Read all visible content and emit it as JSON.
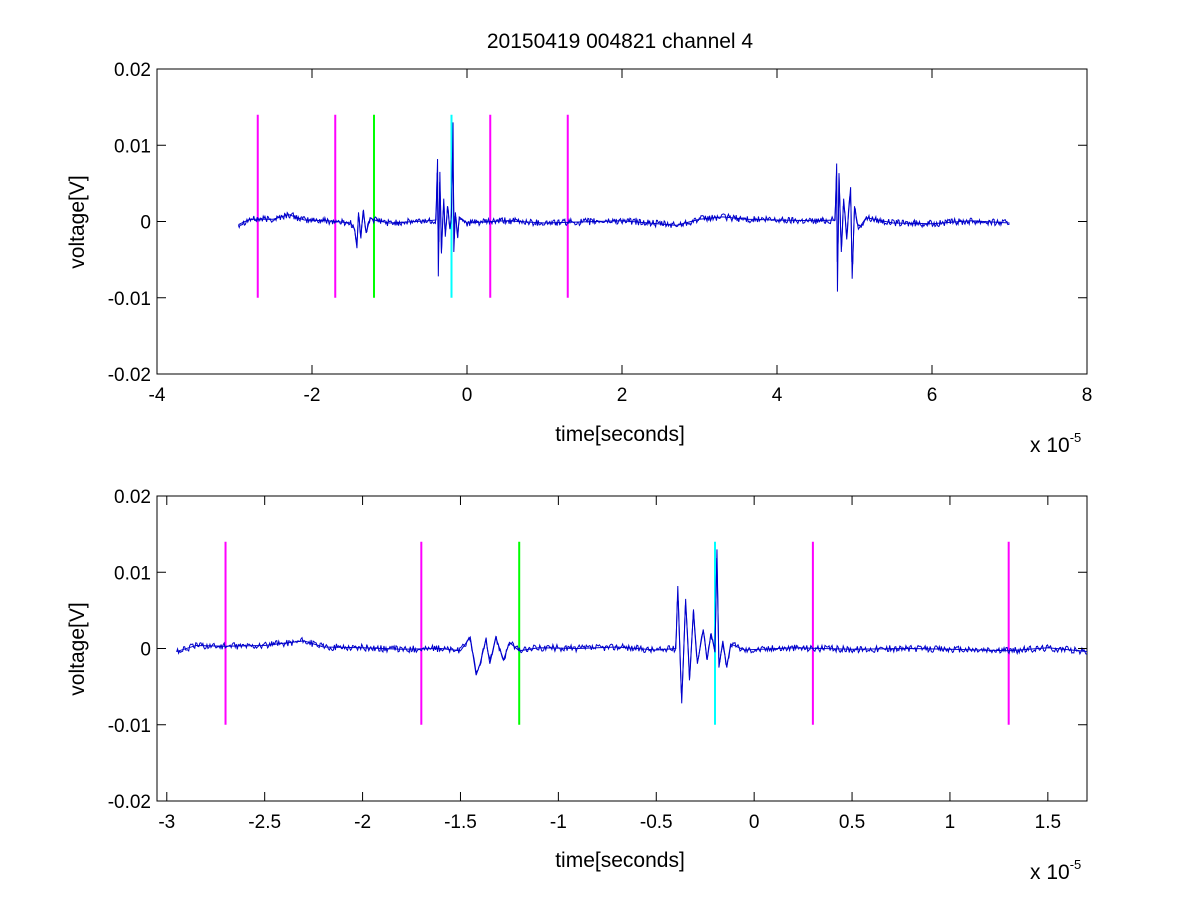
{
  "chart_data": [
    {
      "type": "line",
      "title": "20150419 004821 channel 4",
      "xlabel": "time[seconds]",
      "ylabel": "voltage[V]",
      "x_multiplier_label": "x 10",
      "x_multiplier_exp": "-5",
      "xlim": [
        -4,
        8
      ],
      "ylim": [
        -0.02,
        0.02
      ],
      "x_ticks": [
        -4,
        -2,
        0,
        2,
        4,
        6,
        8
      ],
      "x_tick_labels": [
        "-4",
        "-2",
        "0",
        "2",
        "4",
        "6",
        "8"
      ],
      "y_ticks": [
        -0.02,
        -0.01,
        0,
        0.01,
        0.02
      ],
      "y_tick_labels": [
        "-0.02",
        "-0.01",
        "0",
        "0.01",
        "0.02"
      ],
      "grid": false,
      "signal": {
        "color": "#0000cc",
        "x_range": [
          -2.95,
          7.0
        ],
        "points": [
          [
            -2.95,
            -0.0004
          ],
          [
            -2.8,
            0.0003
          ],
          [
            -2.5,
            0.0003
          ],
          [
            -2.3,
            0.0009
          ],
          [
            -2.1,
            0.0002
          ],
          [
            -1.8,
            0.0001
          ],
          [
            -1.5,
            -0.0002
          ],
          [
            -1.45,
            -0.001
          ],
          [
            -1.42,
            -0.0035
          ],
          [
            -1.4,
            0.0012
          ],
          [
            -1.37,
            -0.002
          ],
          [
            -1.34,
            0.0014
          ],
          [
            -1.3,
            -0.0015
          ],
          [
            -1.25,
            0.0005
          ],
          [
            -1.2,
            0.0002
          ],
          [
            -1.0,
            -0.0002
          ],
          [
            -0.5,
            0.0001
          ],
          [
            -0.4,
            0.0002
          ],
          [
            -0.38,
            0.0082
          ],
          [
            -0.37,
            -0.0072
          ],
          [
            -0.35,
            0.0065
          ],
          [
            -0.33,
            -0.004
          ],
          [
            -0.3,
            0.003
          ],
          [
            -0.28,
            -0.002
          ],
          [
            -0.25,
            0.002
          ],
          [
            -0.22,
            -0.001
          ],
          [
            -0.2,
            0.0008
          ],
          [
            -0.18,
            0.013
          ],
          [
            -0.17,
            -0.004
          ],
          [
            -0.15,
            0.0012
          ],
          [
            -0.12,
            -0.002
          ],
          [
            -0.1,
            0.0006
          ],
          [
            0.0,
            -0.0002
          ],
          [
            0.5,
            0.0001
          ],
          [
            1.0,
            -0.0002
          ],
          [
            2.0,
            0.0001
          ],
          [
            2.7,
            -0.0005
          ],
          [
            3.0,
            0.0003
          ],
          [
            3.3,
            0.0006
          ],
          [
            3.6,
            0.0003
          ],
          [
            4.0,
            0.0002
          ],
          [
            4.5,
            0.0001
          ],
          [
            4.75,
            0.0002
          ],
          [
            4.77,
            0.0076
          ],
          [
            4.78,
            -0.0092
          ],
          [
            4.8,
            0.006
          ],
          [
            4.83,
            -0.004
          ],
          [
            4.86,
            0.003
          ],
          [
            4.9,
            -0.002
          ],
          [
            4.95,
            0.0045
          ],
          [
            4.97,
            -0.0075
          ],
          [
            5.0,
            0.002
          ],
          [
            5.05,
            -0.001
          ],
          [
            5.15,
            0.0005
          ],
          [
            5.5,
            -0.0002
          ],
          [
            6.0,
            -0.0003
          ],
          [
            6.5,
            0.0001
          ],
          [
            7.0,
            -0.0002
          ]
        ]
      },
      "markers": [
        {
          "x": -2.7,
          "y_top": 0.014,
          "y_bottom": -0.01,
          "color": "#ff00ff"
        },
        {
          "x": -1.7,
          "y_top": 0.014,
          "y_bottom": -0.01,
          "color": "#ff00ff"
        },
        {
          "x": -1.2,
          "y_top": 0.014,
          "y_bottom": -0.01,
          "color": "#00ff00"
        },
        {
          "x": -0.2,
          "y_top": 0.014,
          "y_bottom": -0.01,
          "color": "#00ffff"
        },
        {
          "x": 0.3,
          "y_top": 0.014,
          "y_bottom": -0.01,
          "color": "#ff00ff"
        },
        {
          "x": 1.3,
          "y_top": 0.014,
          "y_bottom": -0.01,
          "color": "#ff00ff"
        }
      ]
    },
    {
      "type": "line",
      "title": "",
      "xlabel": "time[seconds]",
      "ylabel": "voltage[V]",
      "x_multiplier_label": "x 10",
      "x_multiplier_exp": "-5",
      "xlim": [
        -3.05,
        1.7
      ],
      "ylim": [
        -0.02,
        0.02
      ],
      "x_ticks": [
        -3,
        -2.5,
        -2,
        -1.5,
        -1,
        -0.5,
        0,
        0.5,
        1,
        1.5
      ],
      "x_tick_labels": [
        "-3",
        "-2.5",
        "-2",
        "-1.5",
        "-1",
        "-0.5",
        "0",
        "0.5",
        "1",
        "1.5"
      ],
      "y_ticks": [
        -0.02,
        -0.01,
        0,
        0.01,
        0.02
      ],
      "y_tick_labels": [
        "-0.02",
        "-0.01",
        "0",
        "0.01",
        "0.02"
      ],
      "grid": false,
      "signal": {
        "color": "#0000cc",
        "x_range": [
          -2.95,
          1.7
        ],
        "points": [
          [
            -2.95,
            -0.0004
          ],
          [
            -2.85,
            0.0004
          ],
          [
            -2.7,
            0.0003
          ],
          [
            -2.5,
            0.0004
          ],
          [
            -2.3,
            0.001
          ],
          [
            -2.2,
            0.0002
          ],
          [
            -2.0,
            0.0001
          ],
          [
            -1.8,
            -0.0001
          ],
          [
            -1.6,
            0.0
          ],
          [
            -1.5,
            -0.0003
          ],
          [
            -1.45,
            0.0015
          ],
          [
            -1.42,
            -0.0035
          ],
          [
            -1.4,
            -0.002
          ],
          [
            -1.37,
            0.0012
          ],
          [
            -1.35,
            -0.002
          ],
          [
            -1.32,
            0.0015
          ],
          [
            -1.28,
            -0.0015
          ],
          [
            -1.25,
            0.0008
          ],
          [
            -1.2,
            -0.0003
          ],
          [
            -1.1,
            0.0001
          ],
          [
            -0.9,
            0.0
          ],
          [
            -0.7,
            0.0002
          ],
          [
            -0.5,
            -0.0002
          ],
          [
            -0.4,
            0.0
          ],
          [
            -0.39,
            0.0082
          ],
          [
            -0.37,
            -0.0072
          ],
          [
            -0.35,
            0.0065
          ],
          [
            -0.33,
            -0.004
          ],
          [
            -0.31,
            0.005
          ],
          [
            -0.29,
            -0.002
          ],
          [
            -0.26,
            0.0025
          ],
          [
            -0.24,
            -0.0015
          ],
          [
            -0.22,
            0.002
          ],
          [
            -0.2,
            -0.0005
          ],
          [
            -0.19,
            0.013
          ],
          [
            -0.18,
            -0.0025
          ],
          [
            -0.16,
            0.001
          ],
          [
            -0.14,
            -0.0025
          ],
          [
            -0.12,
            0.0006
          ],
          [
            -0.05,
            -0.0002
          ],
          [
            0.2,
            0.0001
          ],
          [
            0.5,
            -0.0001
          ],
          [
            0.8,
            0.0
          ],
          [
            1.0,
            -0.0001
          ],
          [
            1.3,
            -0.0003
          ],
          [
            1.5,
            0.0001
          ],
          [
            1.7,
            -0.0004
          ]
        ]
      },
      "markers": [
        {
          "x": -2.7,
          "y_top": 0.014,
          "y_bottom": -0.01,
          "color": "#ff00ff"
        },
        {
          "x": -1.7,
          "y_top": 0.014,
          "y_bottom": -0.01,
          "color": "#ff00ff"
        },
        {
          "x": -1.2,
          "y_top": 0.014,
          "y_bottom": -0.01,
          "color": "#00ff00"
        },
        {
          "x": -0.2,
          "y_top": 0.014,
          "y_bottom": -0.01,
          "color": "#00ffff"
        },
        {
          "x": 0.3,
          "y_top": 0.014,
          "y_bottom": -0.01,
          "color": "#ff00ff"
        },
        {
          "x": 1.3,
          "y_top": 0.014,
          "y_bottom": -0.01,
          "color": "#ff00ff"
        }
      ]
    }
  ]
}
